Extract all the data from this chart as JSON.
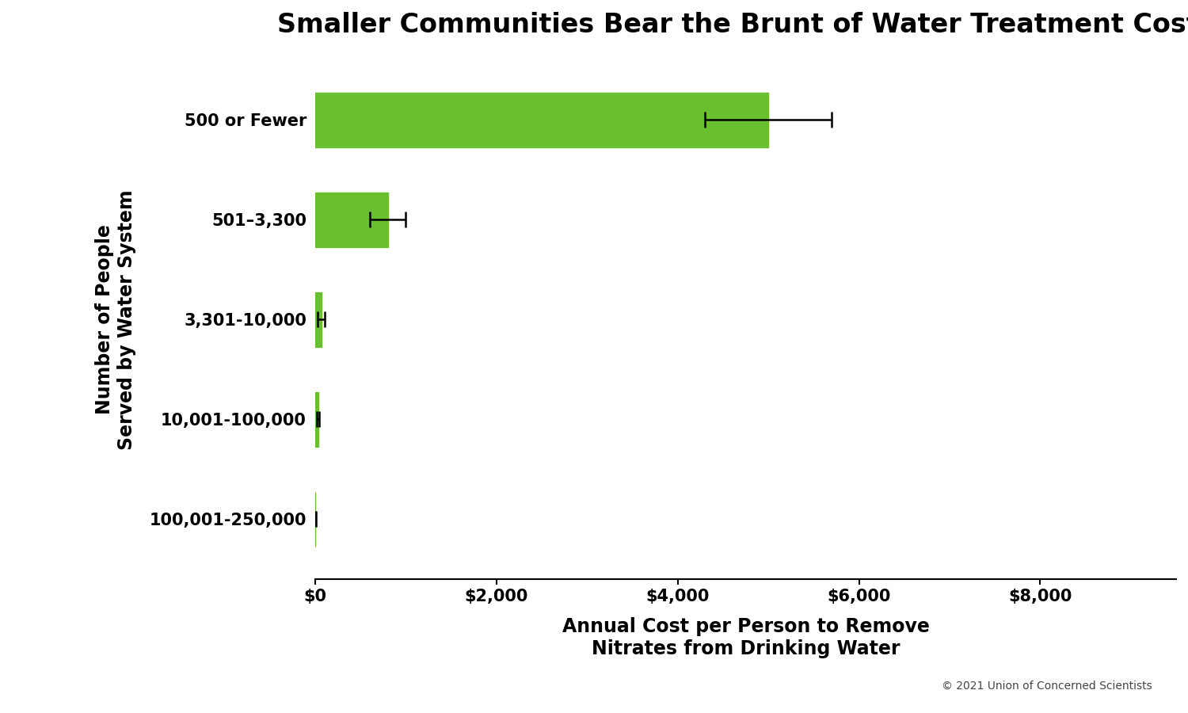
{
  "title": "Smaller Communities Bear the Brunt of Water Treatment Costs",
  "categories": [
    "500 or Fewer",
    "501–3,300",
    "3,301-10,000",
    "10,001-100,000",
    "100,001-250,000"
  ],
  "values": [
    5000,
    800,
    65,
    30,
    2
  ],
  "errors": [
    700,
    200,
    40,
    10,
    2
  ],
  "bar_color": "#6abf2e",
  "error_color": "#000000",
  "xlabel_line1": "Annual Cost per Person to Remove",
  "xlabel_line2": "Nitrates from Drinking Water",
  "ylabel_line1": "Number of People",
  "ylabel_line2": "Served by Water System",
  "xlim": [
    0,
    9500
  ],
  "xticks": [
    0,
    2000,
    4000,
    6000,
    8000
  ],
  "xtick_labels": [
    "$0",
    "$2,000",
    "$4,000",
    "$6,000",
    "$8,000"
  ],
  "copyright": "© 2021 Union of Concerned Scientists",
  "background_color": "#ffffff",
  "title_fontsize": 24,
  "axis_label_fontsize": 17,
  "tick_fontsize": 15,
  "copyright_fontsize": 10
}
